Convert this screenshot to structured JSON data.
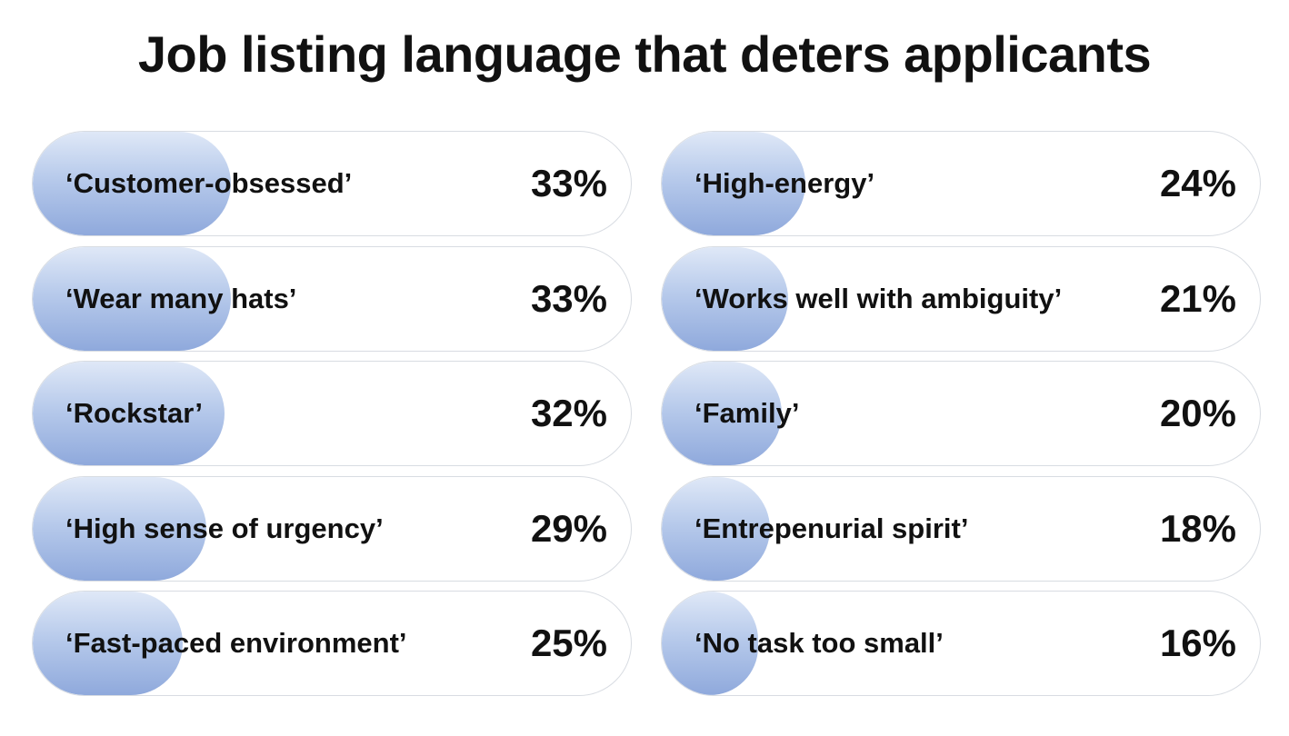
{
  "chart_data": {
    "type": "bar",
    "title": "Job listing language that deters applicants",
    "columns": [
      {
        "items": [
          {
            "label": "‘Customer-obsessed’",
            "value": 33,
            "value_text": "33%"
          },
          {
            "label": "‘Wear many hats’",
            "value": 33,
            "value_text": "33%"
          },
          {
            "label": "‘Rockstar’",
            "value": 32,
            "value_text": "32%"
          },
          {
            "label": "‘High sense of urgency’",
            "value": 29,
            "value_text": "29%"
          },
          {
            "label": "‘Fast-paced environment’",
            "value": 25,
            "value_text": "25%"
          }
        ]
      },
      {
        "items": [
          {
            "label": "‘High-energy’",
            "value": 24,
            "value_text": "24%"
          },
          {
            "label": "‘Works well with ambiguity’",
            "value": 21,
            "value_text": "21%"
          },
          {
            "label": "‘Family’",
            "value": 20,
            "value_text": "20%"
          },
          {
            "label": "‘Entrepenurial spirit’",
            "value": 18,
            "value_text": "18%"
          },
          {
            "label": "‘No task too small’",
            "value": 16,
            "value_text": "16%"
          }
        ]
      }
    ],
    "fill_color_top": "#dfe8f7",
    "fill_color_bottom": "#8fa9dc",
    "outline_color": "#d8dce2"
  }
}
